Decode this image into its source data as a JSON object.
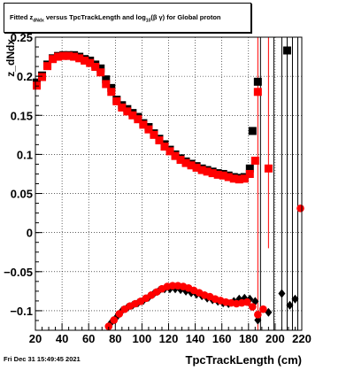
{
  "title": {
    "prefix": "Fitted  z",
    "sub1": "dNdx",
    "middle": "  versus TpcTrackLength and log",
    "sub2": "10",
    "suffix": "(β  γ) for Global proton"
  },
  "footer_date": "Fri Dec 31 15:49:45 2021",
  "chart_data": {
    "type": "scatter",
    "xlabel": "TpcTrackLength (cm)",
    "ylabel": "z_dNdx",
    "xlim": [
      20,
      220
    ],
    "ylim": [
      -0.125,
      0.25
    ],
    "x_ticks": [
      20,
      40,
      60,
      80,
      100,
      120,
      140,
      160,
      180,
      200,
      220
    ],
    "y_ticks": [
      -0.1,
      -0.05,
      0,
      0.05,
      0.1,
      0.15,
      0.2,
      0.25
    ],
    "y_tick_labels": [
      "−0.1",
      "−0.05",
      "0",
      "0.05",
      "0.1",
      "0.15",
      "0.2",
      "0.25"
    ],
    "grid": true,
    "colors": {
      "series_black": "#000000",
      "series_red": "#ff0000"
    },
    "series": [
      {
        "marker": "square",
        "color": "#000000",
        "points": [
          [
            21,
            0.192
          ],
          [
            25,
            0.201
          ],
          [
            29,
            0.215
          ],
          [
            33,
            0.223
          ],
          [
            37,
            0.226
          ],
          [
            41,
            0.227
          ],
          [
            45,
            0.227
          ],
          [
            49,
            0.227
          ],
          [
            53,
            0.225
          ],
          [
            57,
            0.222
          ],
          [
            61,
            0.22
          ],
          [
            65,
            0.215
          ],
          [
            69,
            0.21
          ],
          [
            73,
            0.196
          ],
          [
            77,
            0.185
          ],
          [
            81,
            0.17
          ],
          [
            85,
            0.163
          ],
          [
            89,
            0.158
          ],
          [
            93,
            0.153
          ],
          [
            97,
            0.148
          ],
          [
            101,
            0.14
          ],
          [
            105,
            0.135
          ],
          [
            109,
            0.127
          ],
          [
            113,
            0.12
          ],
          [
            117,
            0.113
          ],
          [
            121,
            0.106
          ],
          [
            125,
            0.1
          ],
          [
            129,
            0.095
          ],
          [
            133,
            0.091
          ],
          [
            137,
            0.088
          ],
          [
            141,
            0.085
          ],
          [
            145,
            0.082
          ],
          [
            149,
            0.08
          ],
          [
            153,
            0.078
          ],
          [
            157,
            0.076
          ],
          [
            161,
            0.075
          ],
          [
            165,
            0.073
          ],
          [
            169,
            0.071
          ],
          [
            173,
            0.07
          ],
          [
            177,
            0.071
          ],
          [
            181,
            0.082
          ],
          [
            183,
            0.13
          ],
          [
            187,
            0.193
          ],
          [
            209,
            0.233
          ]
        ]
      },
      {
        "marker": "square",
        "color": "#ff0000",
        "points": [
          [
            21,
            0.188
          ],
          [
            25,
            0.199
          ],
          [
            29,
            0.213
          ],
          [
            33,
            0.222
          ],
          [
            37,
            0.225
          ],
          [
            41,
            0.226
          ],
          [
            45,
            0.226
          ],
          [
            49,
            0.225
          ],
          [
            53,
            0.223
          ],
          [
            57,
            0.22
          ],
          [
            61,
            0.217
          ],
          [
            65,
            0.212
          ],
          [
            69,
            0.205
          ],
          [
            73,
            0.19
          ],
          [
            77,
            0.18
          ],
          [
            81,
            0.168
          ],
          [
            85,
            0.16
          ],
          [
            89,
            0.155
          ],
          [
            93,
            0.15
          ],
          [
            97,
            0.145
          ],
          [
            101,
            0.138
          ],
          [
            105,
            0.132
          ],
          [
            109,
            0.125
          ],
          [
            113,
            0.118
          ],
          [
            117,
            0.11
          ],
          [
            121,
            0.104
          ],
          [
            125,
            0.098
          ],
          [
            129,
            0.093
          ],
          [
            133,
            0.089
          ],
          [
            137,
            0.086
          ],
          [
            141,
            0.083
          ],
          [
            145,
            0.08
          ],
          [
            149,
            0.078
          ],
          [
            153,
            0.076
          ],
          [
            157,
            0.074
          ],
          [
            161,
            0.073
          ],
          [
            165,
            0.071
          ],
          [
            169,
            0.069
          ],
          [
            173,
            0.068
          ],
          [
            177,
            0.069
          ],
          [
            181,
            0.075
          ],
          [
            185,
            0.092
          ],
          [
            187,
            0.18
          ],
          [
            195,
            0.082
          ]
        ]
      },
      {
        "marker": "diamond",
        "color": "#000000",
        "points": [
          [
            77,
            -0.115
          ],
          [
            81,
            -0.108
          ],
          [
            85,
            -0.1
          ],
          [
            89,
            -0.096
          ],
          [
            93,
            -0.093
          ],
          [
            97,
            -0.09
          ],
          [
            101,
            -0.087
          ],
          [
            105,
            -0.083
          ],
          [
            109,
            -0.078
          ],
          [
            113,
            -0.074
          ],
          [
            117,
            -0.072
          ],
          [
            121,
            -0.072
          ],
          [
            125,
            -0.072
          ],
          [
            129,
            -0.073
          ],
          [
            133,
            -0.075
          ],
          [
            137,
            -0.077
          ],
          [
            141,
            -0.079
          ],
          [
            145,
            -0.081
          ],
          [
            149,
            -0.084
          ],
          [
            153,
            -0.086
          ],
          [
            157,
            -0.088
          ],
          [
            161,
            -0.09
          ],
          [
            165,
            -0.091
          ],
          [
            169,
            -0.088
          ],
          [
            173,
            -0.085
          ],
          [
            177,
            -0.084
          ],
          [
            181,
            -0.085
          ],
          [
            185,
            -0.088
          ],
          [
            187,
            -0.112
          ],
          [
            195,
            -0.102
          ],
          [
            205,
            -0.078
          ],
          [
            211,
            -0.093
          ],
          [
            215,
            -0.085
          ]
        ]
      },
      {
        "marker": "circle",
        "color": "#ff0000",
        "points": [
          [
            75,
            -0.12
          ],
          [
            79,
            -0.112
          ],
          [
            83,
            -0.104
          ],
          [
            87,
            -0.098
          ],
          [
            91,
            -0.094
          ],
          [
            95,
            -0.091
          ],
          [
            99,
            -0.088
          ],
          [
            103,
            -0.084
          ],
          [
            107,
            -0.08
          ],
          [
            111,
            -0.076
          ],
          [
            115,
            -0.072
          ],
          [
            119,
            -0.069
          ],
          [
            123,
            -0.068
          ],
          [
            127,
            -0.068
          ],
          [
            131,
            -0.069
          ],
          [
            135,
            -0.071
          ],
          [
            139,
            -0.074
          ],
          [
            143,
            -0.077
          ],
          [
            147,
            -0.08
          ],
          [
            151,
            -0.082
          ],
          [
            155,
            -0.085
          ],
          [
            159,
            -0.087
          ],
          [
            163,
            -0.089
          ],
          [
            167,
            -0.09
          ],
          [
            171,
            -0.091
          ],
          [
            175,
            -0.09
          ],
          [
            179,
            -0.089
          ],
          [
            183,
            -0.095
          ],
          [
            187,
            -0.105
          ],
          [
            191,
            -0.098
          ],
          [
            219,
            0.031
          ]
        ]
      }
    ],
    "vertical_error_lines": [
      {
        "x": 187,
        "color": "#ff0000",
        "ylo": -0.125,
        "yhi": 0.25
      },
      {
        "x": 189,
        "color": "#000000",
        "ylo": -0.125,
        "yhi": 0.25
      },
      {
        "x": 195,
        "color": "#ff0000",
        "ylo": -0.02,
        "yhi": 0.25
      },
      {
        "x": 199,
        "color": "#000000",
        "ylo": -0.125,
        "yhi": 0.25
      },
      {
        "x": 205,
        "color": "#000000",
        "ylo": -0.125,
        "yhi": 0.25
      },
      {
        "x": 209,
        "color": "#000000",
        "ylo": -0.125,
        "yhi": 0.25
      },
      {
        "x": 213,
        "color": "#000000",
        "ylo": -0.125,
        "yhi": 0.25
      },
      {
        "x": 217,
        "color": "#000000",
        "ylo": -0.125,
        "yhi": 0.25
      }
    ]
  }
}
